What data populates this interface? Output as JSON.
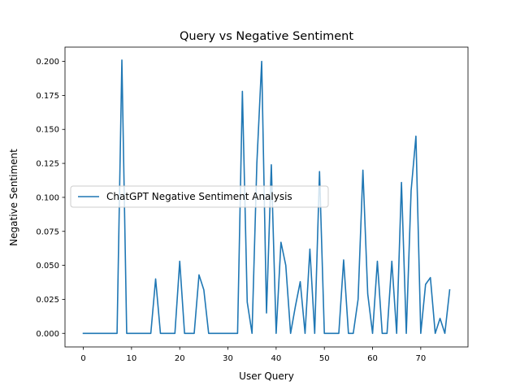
{
  "chart_data": {
    "type": "line",
    "title": "Query vs Negative Sentiment",
    "xlabel": "User Query",
    "ylabel": "Negative Sentiment",
    "xlim": [
      -3.8,
      79.8
    ],
    "ylim": [
      -0.01,
      0.2105
    ],
    "xticks": [
      0,
      10,
      20,
      30,
      40,
      50,
      60,
      70
    ],
    "yticks": [
      "0.000",
      "0.025",
      "0.050",
      "0.075",
      "0.100",
      "0.125",
      "0.150",
      "0.175",
      "0.200"
    ],
    "grid": false,
    "legend_position": "center-left",
    "series": [
      {
        "name": "ChatGPT Negative Sentiment Analysis",
        "color": "#1f77b4",
        "x": [
          0,
          1,
          2,
          3,
          4,
          5,
          6,
          7,
          8,
          9,
          10,
          11,
          12,
          13,
          14,
          15,
          16,
          17,
          18,
          19,
          20,
          21,
          22,
          23,
          24,
          25,
          26,
          27,
          28,
          29,
          30,
          31,
          32,
          33,
          34,
          35,
          36,
          37,
          38,
          39,
          40,
          41,
          42,
          43,
          44,
          45,
          46,
          47,
          48,
          49,
          50,
          51,
          52,
          53,
          54,
          55,
          56,
          57,
          58,
          59,
          60,
          61,
          62,
          63,
          64,
          65,
          66,
          67,
          68,
          69,
          70,
          71,
          72,
          73,
          74,
          75,
          76
        ],
        "y": [
          0,
          0,
          0,
          0,
          0,
          0,
          0,
          0,
          0.201,
          0,
          0,
          0,
          0,
          0,
          0,
          0.04,
          0,
          0,
          0,
          0,
          0.053,
          0,
          0,
          0,
          0.043,
          0.032,
          0,
          0,
          0,
          0,
          0,
          0,
          0,
          0.178,
          0.023,
          0,
          0.125,
          0.2,
          0.015,
          0.124,
          0,
          0.067,
          0.05,
          0,
          0.02,
          0.038,
          0,
          0.062,
          0,
          0.119,
          0,
          0,
          0,
          0,
          0.054,
          0,
          0,
          0.025,
          0.12,
          0.029,
          0,
          0.053,
          0,
          0,
          0.053,
          0,
          0.111,
          0,
          0.105,
          0.145,
          0,
          0.036,
          0.041,
          0,
          0.011,
          0,
          0.032
        ]
      }
    ]
  }
}
